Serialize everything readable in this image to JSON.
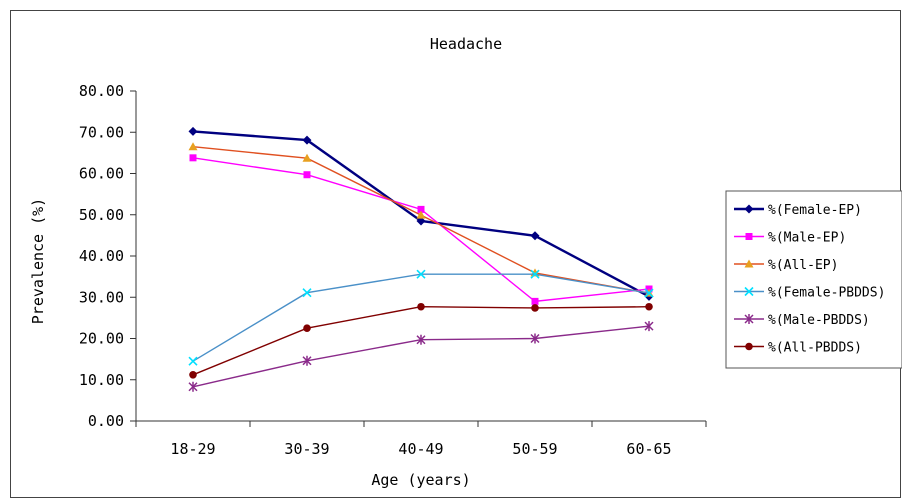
{
  "chart_data": {
    "type": "line",
    "title": "Headache",
    "xlabel": "Age (years)",
    "ylabel": "Prevalence (%)",
    "categories": [
      "18-29",
      "30-39",
      "40-49",
      "50-59",
      "60-65"
    ],
    "ylim": [
      0,
      80
    ],
    "yticks": [
      "0.00",
      "10.00",
      "20.00",
      "30.00",
      "40.00",
      "50.00",
      "60.00",
      "70.00",
      "80.00"
    ],
    "grid": false,
    "legend_position": "right",
    "series": [
      {
        "name": "%(Female-EP)",
        "values": [
          70.2,
          68.1,
          48.5,
          44.9,
          30.2
        ],
        "color": "#000080",
        "marker": "diamond"
      },
      {
        "name": "%(Male-EP)",
        "values": [
          63.8,
          59.7,
          51.3,
          29.0,
          32.0
        ],
        "color": "#ff00ff",
        "marker": "square"
      },
      {
        "name": "%(All-EP)",
        "values": [
          66.5,
          63.7,
          49.9,
          35.9,
          31.0
        ],
        "color": "#e8a020",
        "line_color": "#e05020",
        "marker": "triangle"
      },
      {
        "name": "%(Female-PBDDS)",
        "values": [
          14.5,
          31.1,
          35.6,
          35.6,
          31.0
        ],
        "color": "#00e0ff",
        "line_color": "#4a90c8",
        "marker": "x"
      },
      {
        "name": "%(Male-PBDDS)",
        "values": [
          8.3,
          14.6,
          19.7,
          20.0,
          23.0
        ],
        "color": "#8a2a8a",
        "marker": "star"
      },
      {
        "name": "%(All-PBDDS)",
        "values": [
          11.2,
          22.5,
          27.7,
          27.4,
          27.7
        ],
        "color": "#800000",
        "marker": "circle"
      }
    ]
  }
}
